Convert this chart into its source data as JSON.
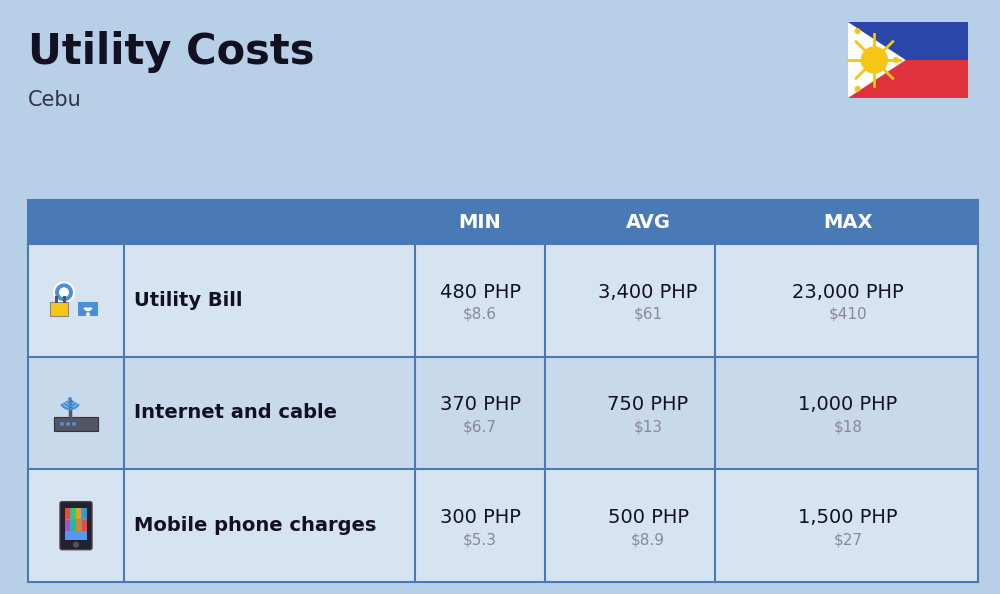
{
  "title": "Utility Costs",
  "subtitle": "Cebu",
  "background_color": "#b8cfe8",
  "header_bg_color": "#4a7ab5",
  "header_text_color": "#ffffff",
  "row_bg_color_1": "#d6e4f2",
  "row_bg_color_2": "#c8d9ec",
  "table_border_color": "#4a7ab5",
  "rows": [
    {
      "label": "Utility Bill",
      "min_php": "480 PHP",
      "min_usd": "$8.6",
      "avg_php": "3,400 PHP",
      "avg_usd": "$61",
      "max_php": "23,000 PHP",
      "max_usd": "$410"
    },
    {
      "label": "Internet and cable",
      "min_php": "370 PHP",
      "min_usd": "$6.7",
      "avg_php": "750 PHP",
      "avg_usd": "$13",
      "max_php": "1,000 PHP",
      "max_usd": "$18"
    },
    {
      "label": "Mobile phone charges",
      "min_php": "300 PHP",
      "min_usd": "$5.3",
      "avg_php": "500 PHP",
      "avg_usd": "$8.9",
      "max_php": "1,500 PHP",
      "max_usd": "$27"
    }
  ],
  "title_fontsize": 30,
  "subtitle_fontsize": 15,
  "header_fontsize": 14,
  "label_fontsize": 14,
  "value_fontsize": 14,
  "usd_fontsize": 11,
  "php_text_color": "#111122",
  "usd_text_color": "#888899",
  "label_text_color": "#111122"
}
